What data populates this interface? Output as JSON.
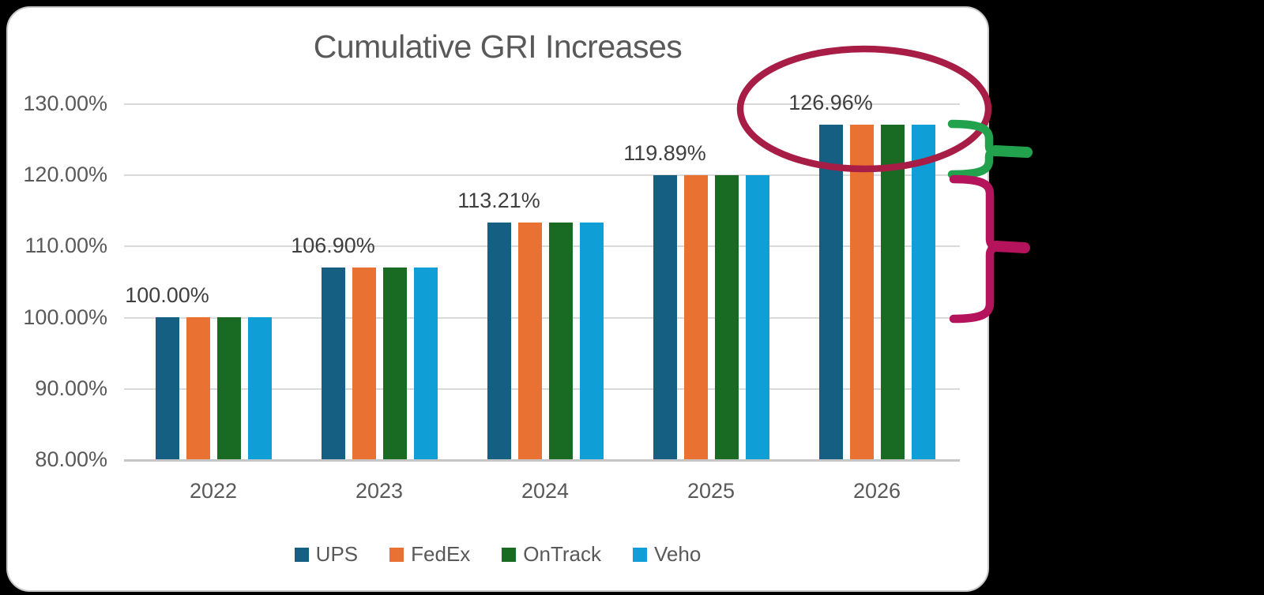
{
  "window": {
    "background_color": "#000000"
  },
  "card": {
    "background_color": "#FFFFFF",
    "border_color": "#C9C9C9"
  },
  "chart_data": {
    "type": "bar",
    "title": "Cumulative GRI Increases",
    "categories": [
      "2022",
      "2023",
      "2024",
      "2025",
      "2026"
    ],
    "series": [
      {
        "name": "UPS",
        "color": "#156082",
        "values": [
          100.0,
          106.9,
          113.21,
          119.89,
          126.96
        ]
      },
      {
        "name": "FedEx",
        "color": "#E97132",
        "values": [
          100.0,
          106.9,
          113.21,
          119.89,
          126.96
        ]
      },
      {
        "name": "OnTrack",
        "color": "#196B24",
        "values": [
          100.0,
          106.9,
          113.21,
          119.89,
          126.96
        ]
      },
      {
        "name": "Veho",
        "color": "#0F9ED5",
        "values": [
          100.0,
          106.9,
          113.21,
          119.89,
          126.96
        ]
      }
    ],
    "data_labels": {
      "attached_to_series": "UPS",
      "values": [
        "100.00%",
        "106.90%",
        "113.21%",
        "119.89%",
        "126.96%"
      ]
    },
    "y_axis": {
      "ticks": [
        "130.00%",
        "120.00%",
        "110.00%",
        "100.00%",
        "90.00%",
        "80.00%"
      ],
      "tick_values": [
        130,
        120,
        110,
        100,
        90,
        80
      ],
      "min": 80,
      "max": 130,
      "unit": "%"
    },
    "grid": true,
    "legend": {
      "position": "bottom"
    },
    "styles": {
      "title_color": "#595959",
      "axis_label_color": "#595959",
      "data_label_color": "#3F3F3F",
      "gridline_color": "#D9D9D9",
      "baseline_color": "#C6C6C6"
    }
  },
  "annotations": {
    "ellipse_2026": {
      "shape": "ellipse",
      "color": "#A71D45"
    },
    "brace_green": {
      "shape": "right-brace",
      "color": "#22A24C"
    },
    "brace_pink": {
      "shape": "right-brace",
      "color": "#B5135B"
    }
  }
}
